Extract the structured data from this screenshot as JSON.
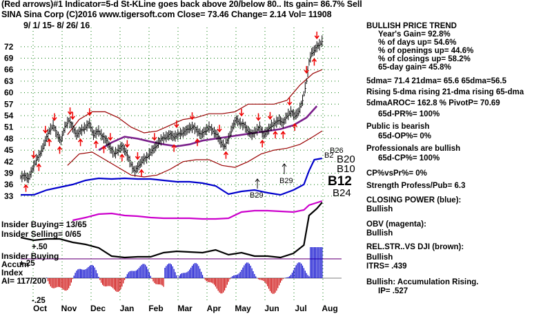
{
  "header": {
    "line1": "(Red arrows)#1 Indicator=5-d St-KLine goes back above 20/below 80.. Its gain= 86.7% Sell",
    "line2": "SINA   Sina Corp  (C)2016 www.tigersoft.com    Close=  73.46  Change= 2.14 Vol= 11908",
    "line3": "9/ 1/ 15-  8/ 26/ 16"
  },
  "side_panel": {
    "trend_title": "BULLISH PRICE TREND",
    "years_gain": "Year's Gain= 92.8%",
    "pct_days_up": "% of days up= 54.6%",
    "pct_openings_up": "% of openings up= 44.6%",
    "pct_closings_up": "% of closings up= 58.2%",
    "gain_65day": "65-day gain= 45.8%",
    "dma_line": "5dma= 71.4 21dma= 65.6 65dma=56.5",
    "rising_line": "Rising 5-dma rising 21-dma rising 65-dma",
    "aroc_line": "5dmaAROC= 162.8 %  PivotP= 70.69",
    "pr_line": "65d-PR%= 100%",
    "public_title": "Public is bearish",
    "op_line": "65d-OP%= 0%",
    "pros_title": "Professionals are bullish",
    "cp_line": "65d-CP%= 100%",
    "cpvspr": "CP%vsPr%=  0%",
    "strength": "Strength Profess/Pub= 6.3",
    "closing_power_title": "CLOSING POWER (blue):",
    "closing_power_value": "Bullish",
    "obv_title": "OBV (magenta):",
    "obv_value": "Bullish",
    "relstr_title": "REL.STR..VS DJI (brown):",
    "relstr_value": "Bullish",
    "itrs": "ITRS=  .439",
    "accum_title": "Bullish: Accumulation Rising.",
    "ip_line": "IP=  .527"
  },
  "chart_data": {
    "type": "line",
    "title": "SINA Sina Corp",
    "ylim": [
      31,
      77
    ],
    "y_ticks": [
      33,
      36,
      39,
      42,
      45,
      48,
      51,
      54,
      57,
      60,
      63,
      66,
      69,
      72
    ],
    "x_ticks": [
      "Oct",
      "Nov",
      "Dec",
      "Jan",
      "Feb",
      "Mar",
      "Apr",
      "May",
      "Jun",
      "Jul",
      "Aug"
    ],
    "x_tick_positions": [
      23,
      43,
      63,
      84,
      103,
      122,
      143,
      164,
      185,
      206,
      227
    ],
    "n_days": 248,
    "price_series": [
      [
        0,
        38
      ],
      [
        3,
        38.3
      ],
      [
        6,
        37.6
      ],
      [
        9,
        40
      ],
      [
        12,
        42.5
      ],
      [
        15,
        44
      ],
      [
        18,
        46.5
      ],
      [
        22,
        50
      ],
      [
        25,
        51.5
      ],
      [
        28,
        49
      ],
      [
        31,
        47.5
      ],
      [
        34,
        51
      ],
      [
        37,
        52.8
      ],
      [
        40,
        51
      ],
      [
        43,
        49
      ],
      [
        46,
        50
      ],
      [
        50,
        51
      ],
      [
        53,
        52
      ],
      [
        56,
        49
      ],
      [
        60,
        50
      ],
      [
        63,
        48.5
      ],
      [
        66,
        47.5
      ],
      [
        69,
        45.5
      ],
      [
        72,
        44
      ],
      [
        75,
        45
      ],
      [
        78,
        46
      ],
      [
        81,
        44.5
      ],
      [
        84,
        42
      ],
      [
        86,
        40.5
      ],
      [
        88,
        39.5
      ],
      [
        91,
        41
      ],
      [
        94,
        42.5
      ],
      [
        97,
        43
      ],
      [
        100,
        44.5
      ],
      [
        103,
        45.5
      ],
      [
        106,
        47
      ],
      [
        109,
        48
      ],
      [
        112,
        48.5
      ],
      [
        115,
        49
      ],
      [
        118,
        48.5
      ],
      [
        121,
        49
      ],
      [
        124,
        49.5
      ],
      [
        127,
        50
      ],
      [
        130,
        50.8
      ],
      [
        133,
        51
      ],
      [
        136,
        50
      ],
      [
        139,
        49
      ],
      [
        142,
        50
      ],
      [
        145,
        51
      ],
      [
        148,
        50
      ],
      [
        151,
        49
      ],
      [
        154,
        47
      ],
      [
        157,
        46
      ],
      [
        160,
        48
      ],
      [
        163,
        51
      ],
      [
        166,
        53
      ],
      [
        169,
        52
      ],
      [
        172,
        51.5
      ],
      [
        175,
        50
      ],
      [
        178,
        49
      ],
      [
        181,
        50
      ],
      [
        184,
        51
      ],
      [
        187,
        49
      ],
      [
        190,
        50
      ],
      [
        193,
        51.5
      ],
      [
        196,
        52
      ],
      [
        199,
        53
      ],
      [
        202,
        52
      ],
      [
        205,
        54
      ],
      [
        208,
        55
      ],
      [
        211,
        54
      ],
      [
        214,
        55
      ],
      [
        217,
        58
      ],
      [
        220,
        63
      ],
      [
        222,
        68
      ],
      [
        224,
        70.5
      ],
      [
        226,
        71
      ],
      [
        228,
        72
      ],
      [
        230,
        72.5
      ],
      [
        232,
        73.46
      ]
    ],
    "upper_band": [
      [
        36,
        49
      ],
      [
        45,
        53
      ],
      [
        55,
        55
      ],
      [
        65,
        55
      ],
      [
        75,
        53.5
      ],
      [
        85,
        51
      ],
      [
        95,
        49.5
      ],
      [
        105,
        50
      ],
      [
        115,
        51.5
      ],
      [
        125,
        53
      ],
      [
        135,
        53.5
      ],
      [
        145,
        54.5
      ],
      [
        155,
        54.5
      ],
      [
        165,
        55
      ],
      [
        175,
        57
      ],
      [
        185,
        57
      ],
      [
        195,
        57
      ],
      [
        205,
        58
      ],
      [
        215,
        62
      ],
      [
        225,
        65
      ],
      [
        232,
        66
      ]
    ],
    "lower_band": [
      [
        36,
        41
      ],
      [
        45,
        44
      ],
      [
        55,
        44.5
      ],
      [
        65,
        42.5
      ],
      [
        75,
        40.5
      ],
      [
        85,
        38.5
      ],
      [
        95,
        38
      ],
      [
        105,
        38.5
      ],
      [
        115,
        40
      ],
      [
        125,
        42
      ],
      [
        135,
        42.5
      ],
      [
        145,
        42.5
      ],
      [
        155,
        41
      ],
      [
        165,
        40.5
      ],
      [
        175,
        42
      ],
      [
        185,
        44
      ],
      [
        195,
        45
      ],
      [
        205,
        45.5
      ],
      [
        215,
        46.5
      ],
      [
        225,
        48.5
      ],
      [
        232,
        50
      ]
    ],
    "ma65": [
      [
        60,
        45
      ],
      [
        70,
        47
      ],
      [
        80,
        48.5
      ],
      [
        90,
        48
      ],
      [
        100,
        47.2
      ],
      [
        110,
        46.5
      ],
      [
        120,
        46
      ],
      [
        130,
        46.5
      ],
      [
        140,
        47.5
      ],
      [
        150,
        48
      ],
      [
        160,
        48.5
      ],
      [
        170,
        49
      ],
      [
        180,
        49.5
      ],
      [
        190,
        50
      ],
      [
        200,
        50.5
      ],
      [
        210,
        51.5
      ],
      [
        220,
        53.5
      ],
      [
        228,
        56.5
      ]
    ],
    "closing_power": [
      [
        0,
        283
      ],
      [
        10,
        283
      ],
      [
        20,
        276
      ],
      [
        30,
        272
      ],
      [
        40,
        268
      ],
      [
        50,
        262
      ],
      [
        60,
        259
      ],
      [
        70,
        260
      ],
      [
        80,
        259
      ],
      [
        90,
        260
      ],
      [
        100,
        260
      ],
      [
        110,
        262
      ],
      [
        120,
        264
      ],
      [
        130,
        264
      ],
      [
        140,
        266
      ],
      [
        150,
        270
      ],
      [
        160,
        282
      ],
      [
        170,
        278
      ],
      [
        180,
        276
      ],
      [
        190,
        280
      ],
      [
        200,
        283
      ],
      [
        210,
        276
      ],
      [
        218,
        268
      ],
      [
        222,
        248
      ],
      [
        226,
        232
      ],
      [
        232,
        230
      ]
    ],
    "obv": [
      [
        40,
        320
      ],
      [
        50,
        316
      ],
      [
        60,
        311
      ],
      [
        70,
        310
      ],
      [
        80,
        313
      ],
      [
        90,
        314
      ],
      [
        100,
        316
      ],
      [
        110,
        317
      ],
      [
        120,
        317
      ],
      [
        130,
        317
      ],
      [
        140,
        318
      ],
      [
        150,
        318
      ],
      [
        160,
        317
      ],
      [
        170,
        308
      ],
      [
        180,
        306
      ],
      [
        190,
        306
      ],
      [
        200,
        307
      ],
      [
        210,
        308
      ],
      [
        218,
        305
      ],
      [
        222,
        298
      ],
      [
        232,
        292
      ]
    ],
    "rel_strength": [
      [
        0,
        345
      ],
      [
        10,
        349
      ],
      [
        20,
        347
      ],
      [
        30,
        347
      ],
      [
        40,
        352
      ],
      [
        50,
        355
      ],
      [
        60,
        360
      ],
      [
        70,
        372
      ],
      [
        80,
        374
      ],
      [
        90,
        373
      ],
      [
        100,
        373
      ],
      [
        110,
        367
      ],
      [
        120,
        365
      ],
      [
        130,
        366
      ],
      [
        140,
        367
      ],
      [
        150,
        363
      ],
      [
        160,
        370
      ],
      [
        170,
        367
      ],
      [
        180,
        372
      ],
      [
        190,
        372
      ],
      [
        200,
        374
      ],
      [
        210,
        368
      ],
      [
        218,
        356
      ],
      [
        222,
        313
      ],
      [
        228,
        303
      ],
      [
        232,
        294
      ]
    ],
    "accum_labels": {
      "plus50": "+.50",
      "plus25": "+.25",
      "minus25": "-.25"
    },
    "annotations": {
      "b12": "B12",
      "b10": "B10",
      "b20": "B20",
      "b24": "B24",
      "b26": "B26",
      "b29": "B29",
      "b27": "B29",
      "b_small": "B2"
    },
    "insider": {
      "buying": "Insider Buying= 13/65",
      "selling": "Insider Selling= 0/65",
      "buying_label": "Insider Buying",
      "accum": "Accum",
      "index": "Index",
      "ai": "AI= 117/200"
    },
    "red_up_arrows_x": [
      4,
      14,
      22,
      30,
      46,
      58,
      64,
      78,
      93,
      118,
      136,
      158,
      186,
      196,
      202,
      211,
      226
    ],
    "red_down_arrows_x": [
      10,
      19,
      26,
      38,
      40,
      53,
      69,
      82,
      90,
      103,
      120,
      132,
      153,
      170,
      183,
      192,
      207,
      220,
      228
    ],
    "colors": {
      "price": "#000000",
      "bands": "#990000",
      "ma65": "#7a1f8a",
      "closing_power": "#0000cc",
      "obv": "#cc00cc",
      "rel_strength": "#000000",
      "accum_pos": "#0000cc",
      "accum_neg": "#cc0000",
      "arrows": "#ee0000",
      "gridline": "#007700"
    }
  }
}
